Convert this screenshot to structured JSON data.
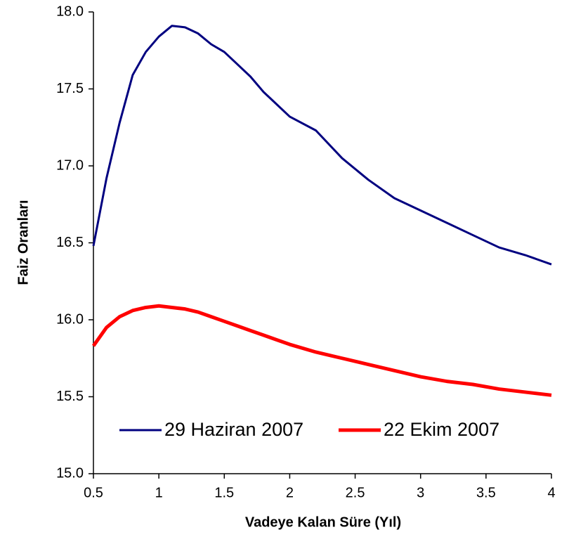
{
  "chart_data": {
    "type": "line",
    "xlabel": "Vadeye Kalan Süre (Yıl)",
    "ylabel": "Faiz Oranları",
    "x": [
      0.5,
      0.6,
      0.7,
      0.8,
      0.9,
      1.0,
      1.1,
      1.2,
      1.3,
      1.4,
      1.5,
      1.6,
      1.7,
      1.8,
      1.9,
      2.0,
      2.2,
      2.4,
      2.6,
      2.8,
      3.0,
      3.2,
      3.4,
      3.6,
      3.8,
      4.0
    ],
    "series": [
      {
        "name": "29 Haziran 2007",
        "color": "#000080",
        "values": [
          16.48,
          16.92,
          17.28,
          17.59,
          17.74,
          17.84,
          17.91,
          17.9,
          17.86,
          17.79,
          17.74,
          17.66,
          17.58,
          17.48,
          17.4,
          17.32,
          17.23,
          17.05,
          16.91,
          16.79,
          16.71,
          16.63,
          16.55,
          16.47,
          16.42,
          16.36
        ]
      },
      {
        "name": "22 Ekim 2007",
        "color": "#ff0000",
        "values": [
          15.83,
          15.95,
          16.02,
          16.06,
          16.08,
          16.09,
          16.08,
          16.07,
          16.05,
          16.02,
          15.99,
          15.96,
          15.93,
          15.9,
          15.87,
          15.84,
          15.79,
          15.75,
          15.71,
          15.67,
          15.63,
          15.6,
          15.58,
          15.55,
          15.53,
          15.51
        ]
      }
    ],
    "xlim": [
      0.5,
      4
    ],
    "xticks": [
      0.5,
      1,
      1.5,
      2,
      2.5,
      3,
      3.5,
      4
    ],
    "ylim": [
      15,
      18
    ],
    "yticks": [
      {
        "value": 15,
        "label": "15.0"
      },
      {
        "value": 15.5,
        "label": "15.5"
      },
      {
        "value": 16,
        "label": "16.0"
      },
      {
        "value": 16.5,
        "label": "16.5"
      },
      {
        "value": 17,
        "label": "17.0"
      },
      {
        "value": 17.5,
        "label": "17.5"
      },
      {
        "value": 18,
        "label": "18.0"
      }
    ],
    "legend": "bottom"
  }
}
